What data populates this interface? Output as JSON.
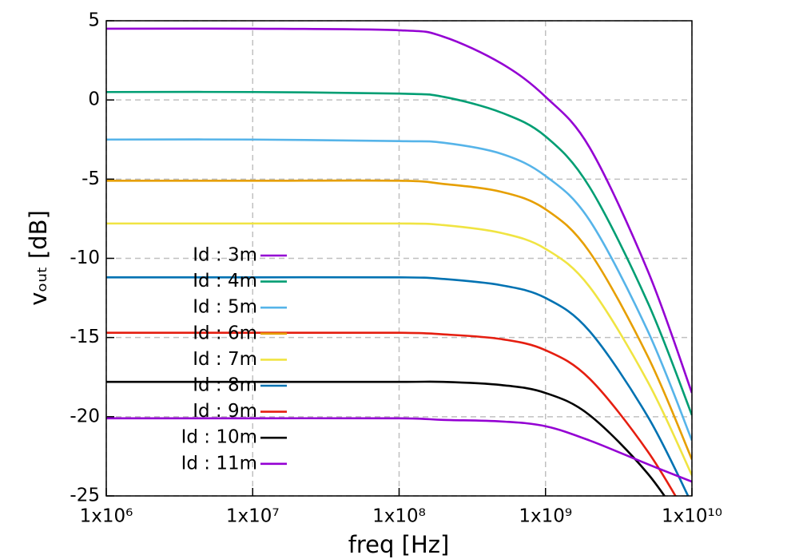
{
  "chart_data": {
    "type": "line",
    "xlabel": "freq [Hz]",
    "ylabel": "vₒᵤₜ [dB]",
    "log_x": true,
    "grid": true,
    "legend": "left",
    "x": [
      1000000,
      10000000,
      100000000,
      200000000,
      500000000,
      1000000000,
      2000000000,
      5000000000,
      10000000000
    ],
    "xlim": [
      1000000,
      10000000000
    ],
    "xticks": [
      {
        "value": 1000000,
        "label": "1x10⁶"
      },
      {
        "value": 10000000,
        "label": "1x10⁷"
      },
      {
        "value": 100000000,
        "label": "1x10⁸"
      },
      {
        "value": 1000000000,
        "label": "1x10⁹"
      },
      {
        "value": 10000000000,
        "label": "1x10¹⁰"
      }
    ],
    "ylim": [
      -25,
      5
    ],
    "yticks": [
      5,
      0,
      -5,
      -10,
      -15,
      -20,
      -25
    ],
    "series": [
      {
        "name": "Id : 3m",
        "color": "#9400d3",
        "values": [
          4.5,
          4.5,
          4.4,
          4.0,
          2.3,
          0.2,
          -3.0,
          -10.8,
          -18.5
        ]
      },
      {
        "name": "Id : 4m",
        "color": "#009e73",
        "values": [
          0.5,
          0.5,
          0.4,
          0.2,
          -0.8,
          -2.3,
          -5.5,
          -12.8,
          -19.9
        ]
      },
      {
        "name": "Id : 5m",
        "color": "#56b4e9",
        "values": [
          -2.5,
          -2.5,
          -2.6,
          -2.7,
          -3.4,
          -4.8,
          -7.6,
          -14.6,
          -21.5
        ]
      },
      {
        "name": "Id : 6m",
        "color": "#e69f00",
        "values": [
          -5.1,
          -5.1,
          -5.1,
          -5.3,
          -5.8,
          -6.9,
          -9.6,
          -16.2,
          -22.7
        ]
      },
      {
        "name": "Id : 7m",
        "color": "#f0e442",
        "values": [
          -7.8,
          -7.8,
          -7.8,
          -7.9,
          -8.4,
          -9.4,
          -11.8,
          -17.8,
          -23.7
        ]
      },
      {
        "name": "Id : 8m",
        "color": "#0072b2",
        "values": [
          -11.2,
          -11.2,
          -11.2,
          -11.3,
          -11.7,
          -12.5,
          -14.6,
          -20.0,
          -25.5
        ]
      },
      {
        "name": "Id : 9m",
        "color": "#e51e10",
        "values": [
          -14.7,
          -14.7,
          -14.7,
          -14.8,
          -15.1,
          -15.8,
          -17.6,
          -22.2,
          -26.8
        ]
      },
      {
        "name": "Id : 10m",
        "color": "#000000",
        "values": [
          -17.8,
          -17.8,
          -17.8,
          -17.8,
          -18.0,
          -18.5,
          -19.9,
          -23.6,
          -27.6
        ]
      },
      {
        "name": "Id : 11m",
        "color": "#9400d3",
        "values": [
          -20.1,
          -20.1,
          -20.1,
          -20.2,
          -20.3,
          -20.6,
          -21.5,
          -23.0,
          -24.1
        ]
      }
    ]
  }
}
